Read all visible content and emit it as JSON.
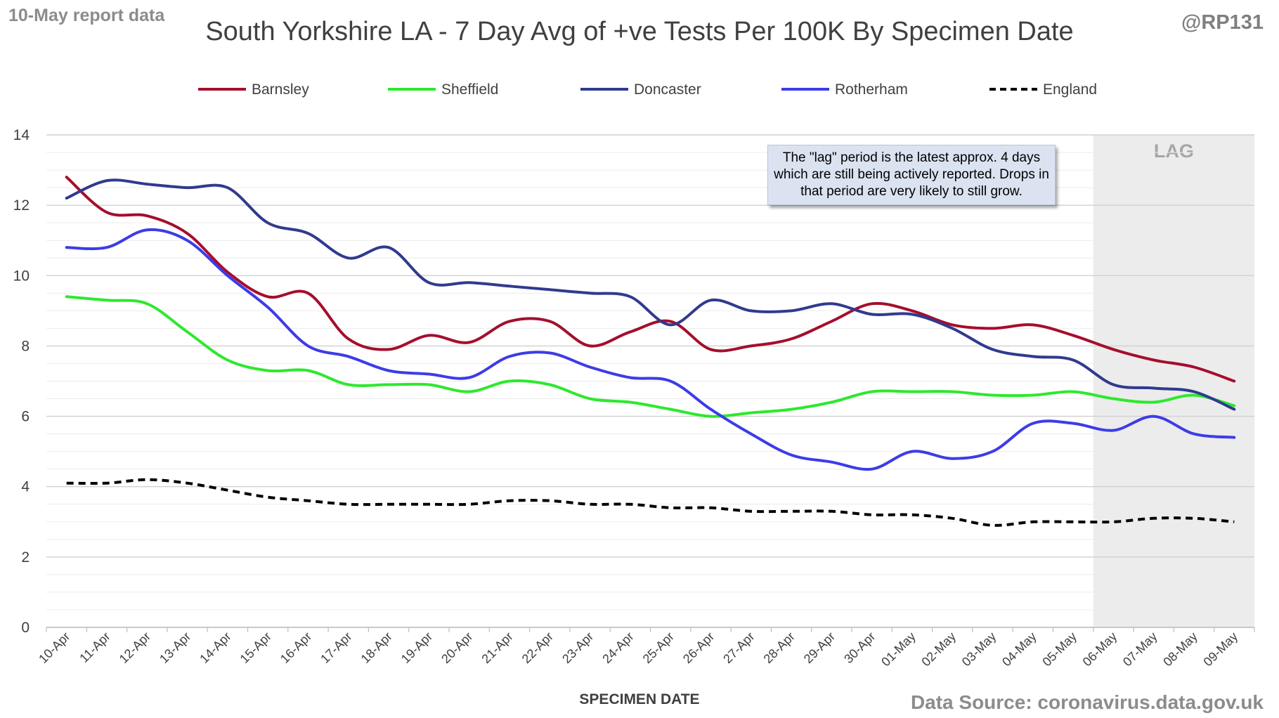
{
  "header": {
    "report_label": "10-May report data",
    "author": "@RP131",
    "source": "Data Source: coronavirus.data.gov.uk"
  },
  "chart_data": {
    "type": "line",
    "title": "South Yorkshire LA - 7 Day Avg of +ve Tests Per 100K By Specimen Date",
    "xlabel": "SPECIMEN DATE",
    "ylabel": "",
    "ylim": [
      0,
      14
    ],
    "yticks": [
      0,
      2,
      4,
      6,
      8,
      10,
      12,
      14
    ],
    "grid": true,
    "legend_position": "top",
    "categories": [
      "10-Apr",
      "11-Apr",
      "12-Apr",
      "13-Apr",
      "14-Apr",
      "15-Apr",
      "16-Apr",
      "17-Apr",
      "18-Apr",
      "19-Apr",
      "20-Apr",
      "21-Apr",
      "22-Apr",
      "23-Apr",
      "24-Apr",
      "25-Apr",
      "26-Apr",
      "27-Apr",
      "28-Apr",
      "29-Apr",
      "30-Apr",
      "01-May",
      "02-May",
      "03-May",
      "04-May",
      "05-May",
      "06-May",
      "07-May",
      "08-May",
      "09-May"
    ],
    "series": [
      {
        "name": "Barnsley",
        "color": "#a50e2d",
        "dashed": false,
        "values": [
          12.8,
          11.8,
          11.7,
          11.2,
          10.1,
          9.4,
          9.5,
          8.2,
          7.9,
          8.3,
          8.1,
          8.7,
          8.7,
          8.0,
          8.4,
          8.7,
          7.9,
          8.0,
          8.2,
          8.7,
          9.2,
          9.0,
          8.6,
          8.5,
          8.6,
          8.3,
          7.9,
          7.6,
          7.4,
          7.0
        ]
      },
      {
        "name": "Sheffield",
        "color": "#2ee82e",
        "dashed": false,
        "values": [
          9.4,
          9.3,
          9.2,
          8.4,
          7.6,
          7.3,
          7.3,
          6.9,
          6.9,
          6.9,
          6.7,
          7.0,
          6.9,
          6.5,
          6.4,
          6.2,
          6.0,
          6.1,
          6.2,
          6.4,
          6.7,
          6.7,
          6.7,
          6.6,
          6.6,
          6.7,
          6.5,
          6.4,
          6.6,
          6.3
        ]
      },
      {
        "name": "Doncaster",
        "color": "#303a8e",
        "dashed": false,
        "values": [
          12.2,
          12.7,
          12.6,
          12.5,
          12.5,
          11.5,
          11.2,
          10.5,
          10.8,
          9.8,
          9.8,
          9.7,
          9.6,
          9.5,
          9.4,
          8.6,
          9.3,
          9.0,
          9.0,
          9.2,
          8.9,
          8.9,
          8.5,
          7.9,
          7.7,
          7.6,
          6.9,
          6.8,
          6.7,
          6.2
        ]
      },
      {
        "name": "Rotherham",
        "color": "#3c3ce8",
        "dashed": false,
        "values": [
          10.8,
          10.8,
          11.3,
          11.0,
          10.0,
          9.1,
          8.0,
          7.7,
          7.3,
          7.2,
          7.1,
          7.7,
          7.8,
          7.4,
          7.1,
          7.0,
          6.2,
          5.5,
          4.9,
          4.7,
          4.5,
          5.0,
          4.8,
          5.0,
          5.8,
          5.8,
          5.6,
          6.0,
          5.5,
          5.4
        ]
      },
      {
        "name": "England",
        "color": "#000000",
        "dashed": true,
        "values": [
          4.1,
          4.1,
          4.2,
          4.1,
          3.9,
          3.7,
          3.6,
          3.5,
          3.5,
          3.5,
          3.5,
          3.6,
          3.6,
          3.5,
          3.5,
          3.4,
          3.4,
          3.3,
          3.3,
          3.3,
          3.2,
          3.2,
          3.1,
          2.9,
          3.0,
          3.0,
          3.0,
          3.1,
          3.1,
          3.0
        ]
      }
    ],
    "lag_region": {
      "label": "LAG",
      "from": "06-May",
      "to": "09-May"
    },
    "annotation": "The \"lag\" period is the latest approx. 4 days which are still being actively reported.  Drops in that period are very likely to still grow."
  }
}
